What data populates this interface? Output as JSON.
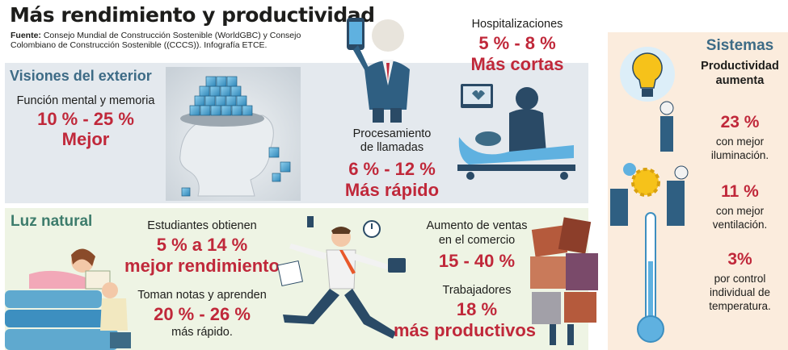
{
  "title": "Más rendimiento y productividad",
  "source": {
    "label": "Fuente:",
    "text": "Consejo Mundial de Construcción Sostenible (WorldGBC) y Consejo Colombiano de Construcción Sostenible ((CCCS)). Infografía ETCE."
  },
  "visiones": {
    "heading": "Visiones del exterior",
    "label": "Función mental y memoria",
    "range": "10 % - 25 %",
    "result": "Mejor"
  },
  "hospital": {
    "label": "Hospitalizaciones",
    "range": "5 % - 8 %",
    "result": "Más cortas"
  },
  "llamadas": {
    "label_line1": "Procesamiento",
    "label_line2": "de llamadas",
    "range": "6 % - 12 %",
    "result": "Más rápido"
  },
  "luz": {
    "heading": "Luz natural",
    "estudiantes_label": "Estudiantes obtienen",
    "estudiantes_range": "5 % a 14 %",
    "estudiantes_result": "mejor rendimiento",
    "notas_label": "Toman notas y aprenden",
    "notas_range": "20 % - 26 %",
    "notas_result": "más rápido.",
    "ventas_line1": "Aumento de ventas",
    "ventas_line2": "en el comercio",
    "ventas_range": "15 - 40 %",
    "trabajadores_label": "Trabajadores",
    "trabajadores_range": "18 %",
    "trabajadores_result": "más productivos"
  },
  "sistemas": {
    "heading": "Sistemas",
    "sub1": "Productividad",
    "sub2": "aumenta",
    "stat1_value": "23 %",
    "stat1_line1": "con mejor",
    "stat1_line2": "iluminación.",
    "stat2_value": "11 %",
    "stat2_line1": "con mejor",
    "stat2_line2": "ventilación.",
    "stat3_value": "3%",
    "stat3_line1": "por control",
    "stat3_line2": "individual de",
    "stat3_line3": "temperatura."
  },
  "colors": {
    "accent_red": "#c0283a",
    "heading_blue": "#3d6b86",
    "heading_green": "#3d7c6c",
    "panel_blue": "#e4e9ee",
    "panel_green": "#eef4e4",
    "panel_peach": "#fbecdd"
  }
}
